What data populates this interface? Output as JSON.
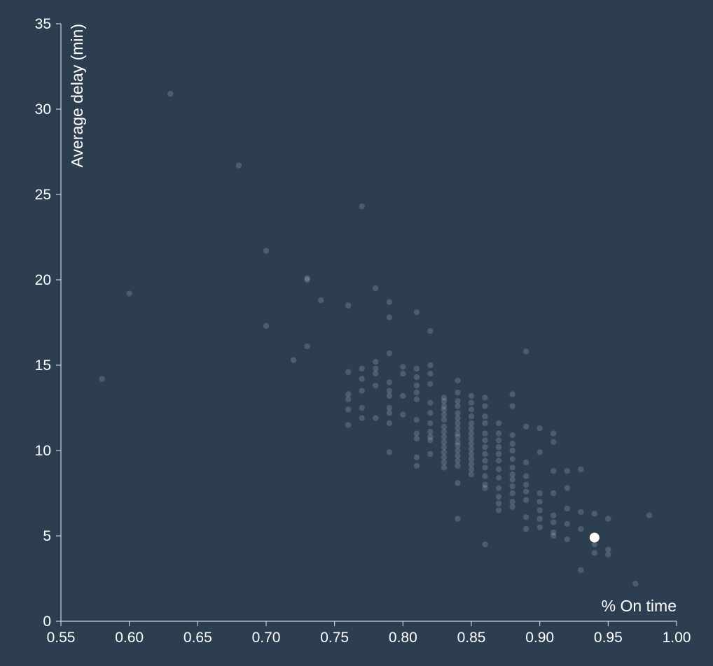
{
  "chart_data": {
    "type": "scatter",
    "title": "",
    "xlabel": "% On time",
    "ylabel": "Average delay (min)",
    "xlim": [
      0.55,
      1.0
    ],
    "ylim": [
      0,
      35
    ],
    "x_ticks": [
      "0.55",
      "0.60",
      "0.65",
      "0.70",
      "0.75",
      "0.80",
      "0.85",
      "0.90",
      "0.95",
      "1.00"
    ],
    "y_ticks": [
      "0",
      "5",
      "10",
      "15",
      "20",
      "25",
      "30",
      "35"
    ],
    "grid": false,
    "point_color": "#ffffff",
    "background": "#2c3e50",
    "highlighted_point": {
      "x": 0.94,
      "y": 4.9
    },
    "points": [
      [
        0.58,
        14.2
      ],
      [
        0.6,
        19.2
      ],
      [
        0.63,
        30.9
      ],
      [
        0.68,
        26.7
      ],
      [
        0.7,
        21.7
      ],
      [
        0.7,
        17.3
      ],
      [
        0.72,
        15.3
      ],
      [
        0.73,
        20.1
      ],
      [
        0.73,
        20.0
      ],
      [
        0.73,
        16.1
      ],
      [
        0.74,
        18.8
      ],
      [
        0.76,
        18.5
      ],
      [
        0.76,
        14.6
      ],
      [
        0.76,
        13.3
      ],
      [
        0.76,
        13.0
      ],
      [
        0.76,
        12.4
      ],
      [
        0.76,
        11.5
      ],
      [
        0.77,
        24.3
      ],
      [
        0.77,
        14.8
      ],
      [
        0.77,
        14.2
      ],
      [
        0.77,
        13.5
      ],
      [
        0.77,
        12.5
      ],
      [
        0.77,
        11.9
      ],
      [
        0.78,
        19.5
      ],
      [
        0.78,
        15.2
      ],
      [
        0.78,
        14.8
      ],
      [
        0.78,
        14.5
      ],
      [
        0.78,
        13.8
      ],
      [
        0.78,
        11.9
      ],
      [
        0.79,
        18.7
      ],
      [
        0.79,
        17.8
      ],
      [
        0.79,
        15.7
      ],
      [
        0.79,
        14.0
      ],
      [
        0.79,
        13.5
      ],
      [
        0.79,
        13.2
      ],
      [
        0.79,
        12.5
      ],
      [
        0.79,
        12.2
      ],
      [
        0.79,
        11.6
      ],
      [
        0.79,
        9.9
      ],
      [
        0.8,
        14.9
      ],
      [
        0.8,
        14.5
      ],
      [
        0.8,
        13.2
      ],
      [
        0.8,
        12.1
      ],
      [
        0.81,
        18.1
      ],
      [
        0.81,
        14.8
      ],
      [
        0.81,
        14.3
      ],
      [
        0.81,
        13.8
      ],
      [
        0.81,
        13.4
      ],
      [
        0.81,
        13.0
      ],
      [
        0.81,
        11.8
      ],
      [
        0.81,
        11.0
      ],
      [
        0.81,
        10.7
      ],
      [
        0.81,
        9.6
      ],
      [
        0.81,
        9.1
      ],
      [
        0.82,
        17.0
      ],
      [
        0.82,
        15.0
      ],
      [
        0.82,
        14.5
      ],
      [
        0.82,
        13.9
      ],
      [
        0.82,
        12.8
      ],
      [
        0.82,
        12.2
      ],
      [
        0.82,
        11.6
      ],
      [
        0.82,
        11.1
      ],
      [
        0.82,
        10.8
      ],
      [
        0.82,
        10.6
      ],
      [
        0.82,
        9.8
      ],
      [
        0.83,
        13.1
      ],
      [
        0.83,
        12.9
      ],
      [
        0.83,
        12.6
      ],
      [
        0.83,
        12.4
      ],
      [
        0.83,
        12.1
      ],
      [
        0.83,
        11.8
      ],
      [
        0.83,
        11.4
      ],
      [
        0.83,
        11.1
      ],
      [
        0.83,
        10.8
      ],
      [
        0.83,
        10.5
      ],
      [
        0.83,
        10.2
      ],
      [
        0.83,
        9.9
      ],
      [
        0.83,
        9.6
      ],
      [
        0.83,
        9.3
      ],
      [
        0.83,
        9.0
      ],
      [
        0.84,
        14.1
      ],
      [
        0.84,
        13.4
      ],
      [
        0.84,
        12.9
      ],
      [
        0.84,
        12.6
      ],
      [
        0.84,
        12.2
      ],
      [
        0.84,
        11.9
      ],
      [
        0.84,
        11.6
      ],
      [
        0.84,
        11.3
      ],
      [
        0.84,
        11.0
      ],
      [
        0.84,
        10.8
      ],
      [
        0.84,
        10.5
      ],
      [
        0.84,
        10.3
      ],
      [
        0.84,
        10.0
      ],
      [
        0.84,
        9.7
      ],
      [
        0.84,
        9.4
      ],
      [
        0.84,
        9.1
      ],
      [
        0.84,
        8.1
      ],
      [
        0.84,
        6.0
      ],
      [
        0.85,
        13.2
      ],
      [
        0.85,
        12.8
      ],
      [
        0.85,
        12.4
      ],
      [
        0.85,
        12.0
      ],
      [
        0.85,
        11.6
      ],
      [
        0.85,
        11.3
      ],
      [
        0.85,
        11.0
      ],
      [
        0.85,
        10.7
      ],
      [
        0.85,
        10.4
      ],
      [
        0.85,
        10.1
      ],
      [
        0.85,
        9.8
      ],
      [
        0.85,
        9.5
      ],
      [
        0.85,
        9.2
      ],
      [
        0.85,
        8.9
      ],
      [
        0.85,
        8.6
      ],
      [
        0.86,
        13.1
      ],
      [
        0.86,
        12.6
      ],
      [
        0.86,
        12.0
      ],
      [
        0.86,
        11.6
      ],
      [
        0.86,
        11.0
      ],
      [
        0.86,
        10.6
      ],
      [
        0.86,
        10.2
      ],
      [
        0.86,
        9.8
      ],
      [
        0.86,
        9.4
      ],
      [
        0.86,
        9.0
      ],
      [
        0.86,
        8.5
      ],
      [
        0.86,
        8.0
      ],
      [
        0.86,
        7.8
      ],
      [
        0.86,
        4.5
      ],
      [
        0.87,
        11.6
      ],
      [
        0.87,
        11.0
      ],
      [
        0.87,
        10.6
      ],
      [
        0.87,
        10.2
      ],
      [
        0.87,
        9.8
      ],
      [
        0.87,
        9.4
      ],
      [
        0.87,
        8.9
      ],
      [
        0.87,
        8.4
      ],
      [
        0.87,
        7.8
      ],
      [
        0.87,
        7.3
      ],
      [
        0.87,
        6.9
      ],
      [
        0.87,
        6.5
      ],
      [
        0.88,
        13.3
      ],
      [
        0.88,
        12.6
      ],
      [
        0.88,
        10.9
      ],
      [
        0.88,
        10.4
      ],
      [
        0.88,
        10.0
      ],
      [
        0.88,
        9.5
      ],
      [
        0.88,
        9.0
      ],
      [
        0.88,
        8.6
      ],
      [
        0.88,
        8.3
      ],
      [
        0.88,
        7.9
      ],
      [
        0.88,
        7.5
      ],
      [
        0.88,
        7.0
      ],
      [
        0.88,
        6.7
      ],
      [
        0.89,
        15.8
      ],
      [
        0.89,
        11.4
      ],
      [
        0.89,
        9.3
      ],
      [
        0.89,
        8.5
      ],
      [
        0.89,
        8.0
      ],
      [
        0.89,
        7.6
      ],
      [
        0.89,
        7.1
      ],
      [
        0.89,
        6.1
      ],
      [
        0.89,
        5.4
      ],
      [
        0.9,
        11.3
      ],
      [
        0.9,
        9.9
      ],
      [
        0.9,
        7.5
      ],
      [
        0.9,
        7.0
      ],
      [
        0.9,
        6.5
      ],
      [
        0.9,
        6.0
      ],
      [
        0.9,
        5.5
      ],
      [
        0.91,
        11.0
      ],
      [
        0.91,
        10.5
      ],
      [
        0.91,
        8.8
      ],
      [
        0.91,
        7.5
      ],
      [
        0.91,
        6.2
      ],
      [
        0.91,
        5.8
      ],
      [
        0.91,
        5.2
      ],
      [
        0.91,
        5.0
      ],
      [
        0.92,
        8.8
      ],
      [
        0.92,
        7.8
      ],
      [
        0.92,
        6.6
      ],
      [
        0.92,
        5.7
      ],
      [
        0.92,
        4.8
      ],
      [
        0.93,
        8.9
      ],
      [
        0.93,
        6.4
      ],
      [
        0.93,
        5.4
      ],
      [
        0.93,
        3.0
      ],
      [
        0.94,
        6.3
      ],
      [
        0.94,
        4.5
      ],
      [
        0.94,
        4.0
      ],
      [
        0.95,
        6.0
      ],
      [
        0.95,
        4.2
      ],
      [
        0.95,
        3.9
      ],
      [
        0.97,
        2.2
      ],
      [
        0.98,
        6.2
      ]
    ]
  }
}
